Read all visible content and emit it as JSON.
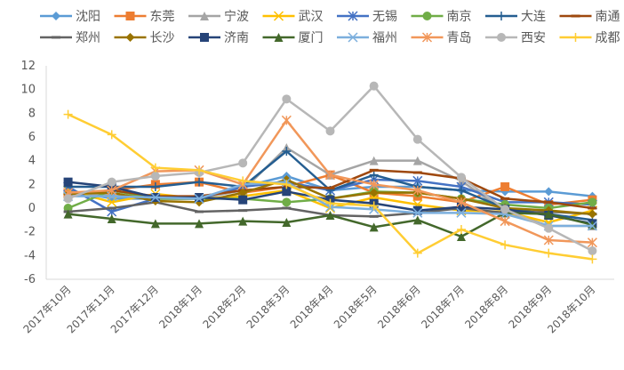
{
  "chart_data": {
    "type": "line",
    "title": "",
    "xlabel": "",
    "ylabel": "",
    "ylim": [
      -6,
      12
    ],
    "yticks": [
      -6,
      -4,
      -2,
      0,
      2,
      4,
      6,
      8,
      10,
      12
    ],
    "grid": false,
    "legend_position": "top",
    "categories": [
      "2017年10月",
      "2017年11月",
      "2017年12月",
      "2018年1月",
      "2018年2月",
      "2018年3月",
      "2018年4月",
      "2018年5月",
      "2018年6月",
      "2018年7月",
      "2018年8月",
      "2018年9月",
      "2018年10月"
    ],
    "series": [
      {
        "name": "沈阳",
        "color": "#5B9BD5",
        "marker": "diamond",
        "values": [
          1.5,
          0.8,
          0.8,
          0.8,
          1.8,
          2.7,
          1.5,
          1.8,
          1.8,
          1.5,
          1.4,
          1.4,
          1.0
        ]
      },
      {
        "name": "东莞",
        "color": "#ED7D31",
        "marker": "square",
        "values": [
          1.2,
          1.5,
          2.0,
          2.2,
          1.3,
          1.8,
          2.8,
          1.3,
          1.0,
          0.5,
          1.8,
          0.3,
          0.7
        ]
      },
      {
        "name": "宁波",
        "color": "#A5A5A5",
        "marker": "triangle",
        "values": [
          1.0,
          1.2,
          0.8,
          0.8,
          1.5,
          5.1,
          2.8,
          4.0,
          4.0,
          2.3,
          -0.3,
          -1.5,
          -1.5
        ]
      },
      {
        "name": "武汉",
        "color": "#FFC000",
        "marker": "x",
        "values": [
          1.5,
          0.5,
          1.2,
          0.8,
          1.0,
          1.5,
          0.0,
          0.9,
          0.3,
          -0.2,
          -0.3,
          -1.2,
          -0.2
        ]
      },
      {
        "name": "无锡",
        "color": "#4472C4",
        "marker": "star",
        "values": [
          1.8,
          -0.3,
          0.8,
          0.8,
          1.8,
          2.2,
          1.5,
          2.4,
          2.3,
          1.8,
          0.5,
          0.5,
          0.3
        ]
      },
      {
        "name": "南京",
        "color": "#70AD47",
        "marker": "circle",
        "values": [
          0.0,
          1.5,
          0.8,
          0.8,
          0.8,
          0.5,
          0.8,
          1.4,
          1.3,
          0.8,
          0.3,
          0.0,
          0.5
        ]
      },
      {
        "name": "大连",
        "color": "#255E91",
        "marker": "plus",
        "values": [
          1.8,
          1.8,
          1.8,
          2.2,
          1.8,
          4.8,
          1.5,
          2.8,
          1.8,
          1.5,
          0.0,
          -0.5,
          -1.0
        ]
      },
      {
        "name": "南通",
        "color": "#9E480E",
        "marker": "dash",
        "values": [
          1.2,
          1.5,
          1.0,
          1.0,
          1.5,
          1.8,
          1.7,
          3.2,
          3.0,
          2.5,
          0.8,
          0.5,
          0.0
        ]
      },
      {
        "name": "郑州",
        "color": "#636363",
        "marker": "dash",
        "values": [
          -0.3,
          0.0,
          0.5,
          -0.3,
          -0.2,
          0.0,
          -0.6,
          -0.7,
          -0.4,
          0.0,
          -0.4,
          -0.3,
          -0.5
        ]
      },
      {
        "name": "长沙",
        "color": "#997300",
        "marker": "diamond",
        "values": [
          1.2,
          1.3,
          0.6,
          0.5,
          1.3,
          2.4,
          0.8,
          1.3,
          1.3,
          0.8,
          0.0,
          -0.2,
          -0.5
        ]
      },
      {
        "name": "济南",
        "color": "#264478",
        "marker": "square",
        "values": [
          2.2,
          1.8,
          0.9,
          0.9,
          0.7,
          1.4,
          0.7,
          0.4,
          -0.2,
          0.1,
          -0.1,
          -0.6,
          -1.3
        ]
      },
      {
        "name": "厦门",
        "color": "#43682B",
        "marker": "triangle",
        "values": [
          -0.5,
          -0.9,
          -1.3,
          -1.3,
          -1.1,
          -1.2,
          -0.6,
          -1.6,
          -1.0,
          -2.4,
          -0.4,
          -0.5,
          -1.4
        ]
      },
      {
        "name": "福州",
        "color": "#7CAFDD",
        "marker": "x",
        "values": [
          1.0,
          1.0,
          0.9,
          0.8,
          2.0,
          2.2,
          0.1,
          -0.1,
          -0.4,
          -0.4,
          -0.5,
          -1.5,
          -1.5
        ]
      },
      {
        "name": "青岛",
        "color": "#F1975A",
        "marker": "star",
        "values": [
          1.3,
          1.5,
          3.1,
          3.2,
          2.0,
          7.4,
          2.8,
          2.0,
          1.5,
          0.5,
          -1.1,
          -2.7,
          -2.9
        ]
      },
      {
        "name": "西安",
        "color": "#B7B7B7",
        "marker": "circle",
        "values": [
          0.8,
          2.2,
          2.7,
          3.0,
          3.8,
          9.2,
          6.5,
          10.3,
          5.8,
          2.6,
          -0.1,
          -1.7,
          -3.6
        ]
      },
      {
        "name": "成都",
        "color": "#FFCD33",
        "marker": "plus",
        "values": [
          7.9,
          6.2,
          3.4,
          3.2,
          2.3,
          2.0,
          0.4,
          0.2,
          -3.8,
          -1.8,
          -3.1,
          -3.8,
          -4.3
        ]
      }
    ]
  }
}
